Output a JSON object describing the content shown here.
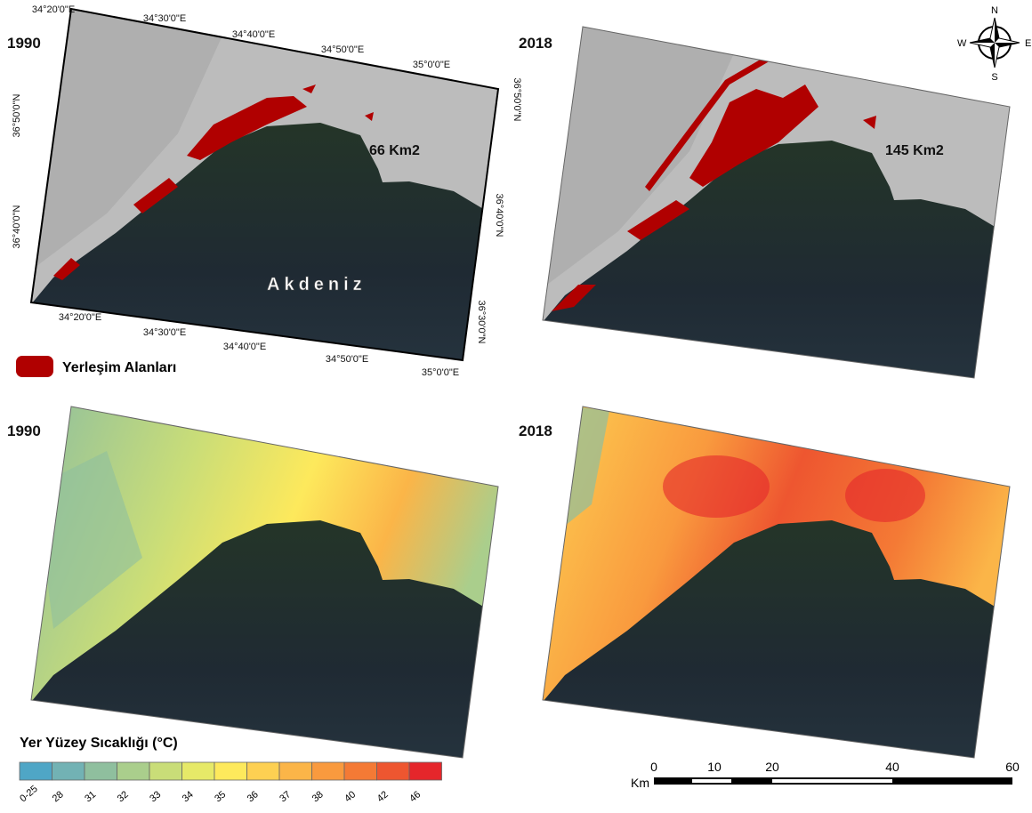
{
  "panels": [
    {
      "year": "1990",
      "area": "66 Km2",
      "sea_label": "Akdeniz"
    },
    {
      "year": "2018",
      "area": "145 Km2"
    },
    {
      "year": "1990"
    },
    {
      "year": "2018"
    }
  ],
  "graticule": {
    "top": [
      "34°20'0\"E",
      "34°30'0\"E",
      "34°40'0\"E",
      "34°50'0\"E",
      "35°0'0\"E"
    ],
    "bottom": [
      "34°20'0\"E",
      "34°30'0\"E",
      "34°40'0\"E",
      "34°50'0\"E",
      "35°0'0\"E"
    ],
    "left": [
      "36°50'0\"N",
      "36°40'0\"N"
    ],
    "right": [
      "36°50'0\"N",
      "36°40'0\"N",
      "36°30'0\"N"
    ]
  },
  "compass": {
    "n": "N",
    "s": "S",
    "e": "E",
    "w": "W"
  },
  "settlement_legend": {
    "label": "Yerleşim Alanları",
    "color": "#b00000"
  },
  "lst_legend": {
    "title": "Yer Yüzey Sıcaklığı (°C)",
    "classes": [
      {
        "label": "0-25",
        "color": "#4fa6c6"
      },
      {
        "label": "28",
        "color": "#72b2b4"
      },
      {
        "label": "31",
        "color": "#8fbf9e"
      },
      {
        "label": "32",
        "color": "#aace8c"
      },
      {
        "label": "33",
        "color": "#c9dd78"
      },
      {
        "label": "34",
        "color": "#e6e968"
      },
      {
        "label": "35",
        "color": "#fde95c"
      },
      {
        "label": "36",
        "color": "#fdd052"
      },
      {
        "label": "37",
        "color": "#fbb548"
      },
      {
        "label": "38",
        "color": "#f99a3e"
      },
      {
        "label": "40",
        "color": "#f47a35"
      },
      {
        "label": "42",
        "color": "#ee5630"
      },
      {
        "label": "46",
        "color": "#e5262b"
      }
    ]
  },
  "scale_bar": {
    "unit": "Km",
    "ticks": [
      "0",
      "10",
      "20",
      "40",
      "60"
    ]
  }
}
